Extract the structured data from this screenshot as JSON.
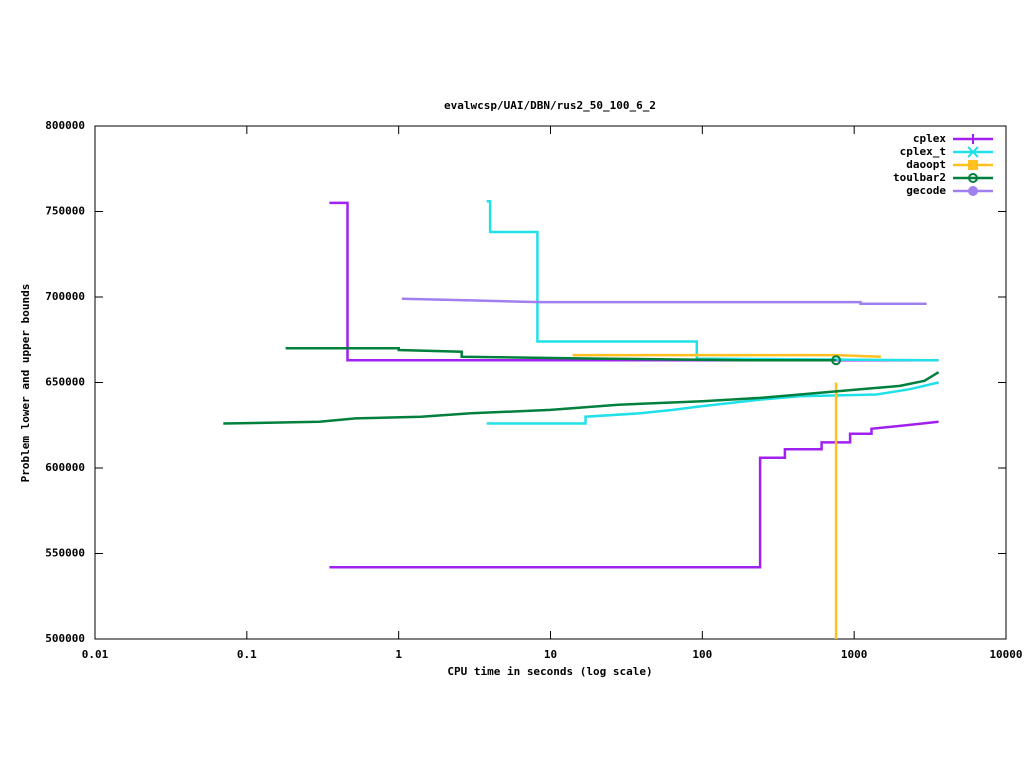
{
  "chart_data": {
    "type": "line",
    "title": "evalwcsp/UAI/DBN/rus2_50_100_6_2",
    "xlabel": "CPU time in seconds (log scale)",
    "ylabel": "Problem lower and upper bounds",
    "xscale": "log",
    "xlim": [
      0.01,
      10000
    ],
    "xticks": [
      0.01,
      0.1,
      1,
      10,
      100,
      1000,
      10000
    ],
    "ylim": [
      500000,
      800000
    ],
    "yticks": [
      500000,
      550000,
      600000,
      650000,
      700000,
      750000,
      800000
    ],
    "legend": "top-right",
    "series": [
      {
        "name": "cplex",
        "color": "#a020f0",
        "marker": "plus",
        "lines": [
          {
            "x": [
              0.35,
              0.46,
              0.46,
              3600
            ],
            "y": [
              755000,
              755000,
              663000,
              663000
            ]
          },
          {
            "x": [
              0.35,
              240,
              240,
              350,
              350,
              610,
              610,
              940,
              940,
              1300,
              1300,
              2200,
              3600
            ],
            "y": [
              542000,
              542000,
              606000,
              606000,
              611000,
              611000,
              615000,
              615000,
              620000,
              620000,
              623000,
              625000,
              627000
            ]
          }
        ]
      },
      {
        "name": "cplex_t",
        "color": "#20e0e8",
        "marker": "cross",
        "lines": [
          {
            "x": [
              3.8,
              4.0,
              4.0,
              8.2,
              8.2,
              92,
              92,
              3600
            ],
            "y": [
              756000,
              756000,
              738000,
              738000,
              674000,
              674000,
              664000,
              663000
            ]
          },
          {
            "x": [
              3.8,
              17,
              17,
              39,
              64,
              97,
              240,
              440,
              1400,
              2300,
              3600
            ],
            "y": [
              626000,
              626000,
              630000,
              632000,
              634000,
              636000,
              640000,
              642000,
              643000,
              646000,
              650000
            ]
          }
        ]
      },
      {
        "name": "daoopt",
        "color": "#ffc020",
        "marker": "square",
        "lines": [
          {
            "x": [
              14,
              760,
              1500
            ],
            "y": [
              666000,
              666000,
              665000
            ]
          },
          {
            "x": [
              760,
              760
            ],
            "y": [
              650000,
              500000
            ]
          }
        ]
      },
      {
        "name": "toulbar2",
        "color": "#00803c",
        "marker": "circle",
        "end_marker": true,
        "lines": [
          {
            "x": [
              0.18,
              1.0,
              1.0,
              2.6,
              2.6,
              20,
              190,
              760
            ],
            "y": [
              670000,
              670000,
              669000,
              668000,
              665000,
              664000,
              663000,
              663000
            ]
          },
          {
            "x": [
              0.07,
              0.3,
              0.52,
              1.4,
              3,
              10,
              28,
              100,
              240,
              440,
              1100,
              2000,
              2900,
              3600
            ],
            "y": [
              626000,
              627000,
              629000,
              630000,
              632000,
              634000,
              637000,
              639000,
              641000,
              643000,
              646000,
              648000,
              651000,
              656000
            ]
          }
        ]
      },
      {
        "name": "gecode",
        "color": "#a080f0",
        "marker": "dot",
        "lines": [
          {
            "x": [
              1.05,
              3,
              8.5,
              1100,
              1100,
              3000
            ],
            "y": [
              699000,
              698000,
              697000,
              697000,
              696000,
              696000
            ]
          }
        ]
      }
    ]
  }
}
